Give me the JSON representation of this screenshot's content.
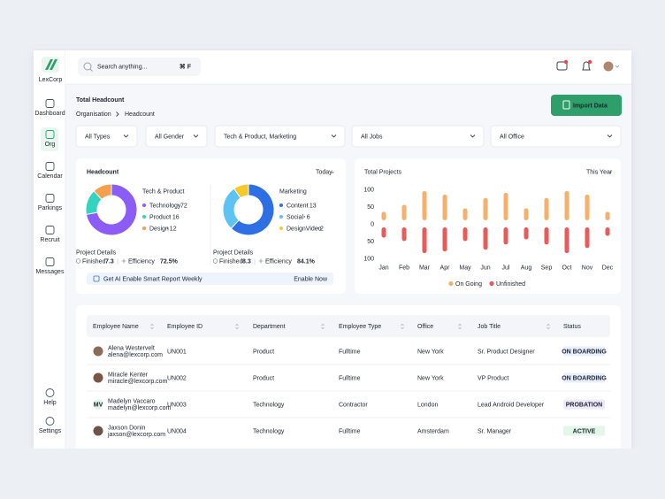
{
  "brand": "LexCorp",
  "search": {
    "placeholder": "Search anything...",
    "shortcut": "⌘ F"
  },
  "nav": [
    "Dashboard",
    "Org",
    "Calendar",
    "Parkings",
    "Recruit",
    "Messages"
  ],
  "nav_bottom": [
    "Help",
    "Settings"
  ],
  "header": {
    "title": "Total Headcount",
    "breadcrumb": [
      "Organisation",
      "Headcount"
    ],
    "button": "Import Data"
  },
  "filters": [
    "All Types",
    "All Gender",
    "Tech & Product, Marketing",
    "All Jobs",
    "All Office"
  ],
  "headcount": {
    "title": "Headcount",
    "period": "Today",
    "banner": "Get AI Enable Smart Report Weekly",
    "banner_action": "Enable Now"
  },
  "chart_data": [
    {
      "type": "donut",
      "title": "Tech & Product",
      "categories": [
        "Technology",
        "Product",
        "Design"
      ],
      "values": [
        72,
        16,
        12
      ],
      "colors": [
        "#8b5cf6",
        "#34d3c0",
        "#f5a04e"
      ],
      "details": {
        "title": "Project Details",
        "items": [
          {
            "label": "Finished",
            "value": "7.3"
          },
          {
            "label": "Efficiency",
            "value": "72.5%"
          }
        ]
      }
    },
    {
      "type": "donut",
      "title": "Marketing",
      "categories": [
        "Content",
        "Social",
        "DesignVideo"
      ],
      "values": [
        13,
        6,
        2
      ],
      "colors": [
        "#2f6fe4",
        "#5cc3f2",
        "#f6c82a"
      ],
      "details": {
        "title": "Project Details",
        "items": [
          {
            "label": "Finished",
            "value": "8.3"
          },
          {
            "label": "Efficiency",
            "value": "84.1%"
          }
        ]
      }
    },
    {
      "type": "bar",
      "title": "Total Projects",
      "period": "This Year",
      "categories": [
        "Jan",
        "Feb",
        "Mar",
        "Apr",
        "May",
        "Jun",
        "Jul",
        "Aug",
        "Sep",
        "Oct",
        "Nov",
        "Dec"
      ],
      "series": [
        {
          "name": "On Going",
          "color": "#f5b06b",
          "values": [
            35,
            55,
            95,
            85,
            45,
            75,
            90,
            45,
            75,
            95,
            85,
            35
          ]
        },
        {
          "name": "Unfinished",
          "color": "#e85b5b",
          "values": [
            -40,
            -50,
            -85,
            -80,
            -50,
            -75,
            -60,
            -45,
            -60,
            -85,
            -70,
            -35
          ]
        }
      ],
      "ylim": [
        -100,
        100
      ],
      "yticks": [
        100,
        50,
        0,
        {
          "value": -50,
          "label": "50"
        },
        {
          "value": -100,
          "label": "100"
        }
      ]
    }
  ],
  "table": {
    "columns": [
      "Employee Name",
      "Employee ID",
      "Department",
      "Employee Type",
      "Office",
      "Job Title",
      "Status"
    ],
    "rows": [
      {
        "name": "Alena Westervelt",
        "email": "alena@lexcorp.com",
        "id": "UN001",
        "department": "Product",
        "type": "Fulltime",
        "office": "New York",
        "job": "Sr. Product Designer",
        "status": "ON BOARDING"
      },
      {
        "name": "Miracle Kenter",
        "email": "miracle@lexcorp.com",
        "id": "UN002",
        "department": "Product",
        "type": "Fulltime",
        "office": "New York",
        "job": "VP Product",
        "status": "ON BOARDING"
      },
      {
        "name": "Madelyn Vaccaro",
        "email": "madelyn@lexcorp.com",
        "initials": "MV",
        "id": "UN003",
        "department": "Technology",
        "type": "Contractor",
        "office": "London",
        "job": "Lead Android Developer",
        "status": "PROBATION"
      },
      {
        "name": "Jaxson Donin",
        "email": "jaxson@lexcorp.com",
        "id": "UN004",
        "department": "Technology",
        "type": "Fulltime",
        "office": "Amsterdam",
        "job": "Sr. Manager",
        "status": "ACTIVE"
      }
    ]
  }
}
